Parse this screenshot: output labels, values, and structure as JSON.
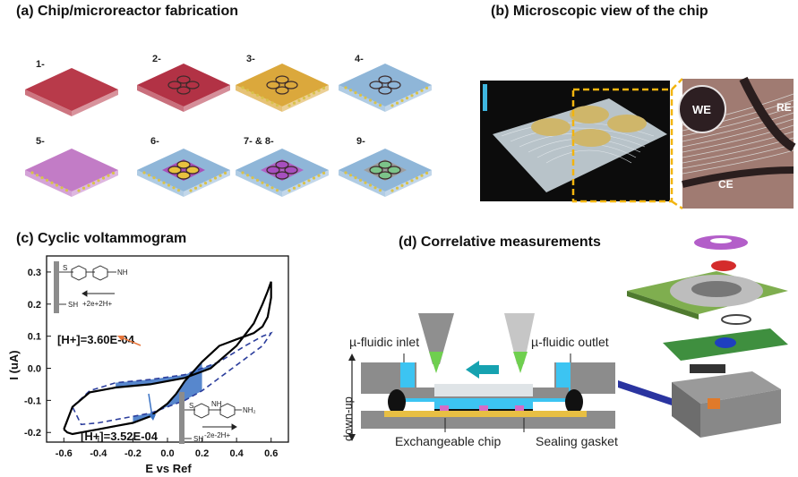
{
  "panels": {
    "a_title": "(a) Chip/microreactor fabrication",
    "b_title": "(b) Microscopic view of the chip",
    "c_title": "(c) Cyclic voltammogram",
    "d_title": "(d) Correlative measurements"
  },
  "fabrication_steps": [
    {
      "label": "1-",
      "color": "#b83a4a"
    },
    {
      "label": "2-",
      "color": "#b23245"
    },
    {
      "label": "3-",
      "color": "#dba83c"
    },
    {
      "label": "4-",
      "color": "#8fb6d8"
    },
    {
      "label": "5-",
      "color": "#c27cc6"
    },
    {
      "label": "6-",
      "color": "#8fb6d8"
    },
    {
      "label": "7- & 8-",
      "color": "#8fb6d8"
    },
    {
      "label": "9-",
      "color": "#8fb6d8"
    }
  ],
  "microscope": {
    "we": "WE",
    "re": "RE",
    "ce": "CE"
  },
  "chart_data": {
    "type": "line",
    "xlabel": "E vs Ref",
    "ylabel": "I (uA)",
    "xlim": [
      -0.7,
      0.7
    ],
    "ylim": [
      -0.23,
      0.35
    ],
    "xticks": [
      "-0.6",
      "-0.4",
      "-0.2",
      "0.0",
      "0.2",
      "0.4",
      "0.6"
    ],
    "yticks": [
      "-0.2",
      "-0.1",
      "0.0",
      "0.1",
      "0.2",
      "0.3"
    ],
    "annotations": [
      "[H+]=3.60E-04",
      "[H+]=3.52E-04"
    ],
    "reaction_top": "+2e+2H+",
    "reaction_bottom": "-2e-2H+",
    "series": [
      {
        "style": "solid",
        "color": "#000000",
        "x": [
          -0.6,
          -0.55,
          -0.45,
          -0.3,
          -0.1,
          0.1,
          0.25,
          0.4,
          0.5,
          0.55,
          0.58,
          0.6,
          0.6,
          0.58,
          0.55,
          0.5,
          0.45,
          0.4,
          0.3,
          0.2,
          0.1,
          0.05,
          0.0,
          -0.1,
          -0.2,
          -0.3,
          -0.4,
          -0.5,
          -0.55,
          -0.58,
          -0.6
        ],
        "y": [
          -0.19,
          -0.12,
          -0.075,
          -0.06,
          -0.05,
          -0.03,
          0.0,
          0.07,
          0.14,
          0.2,
          0.24,
          0.27,
          0.22,
          0.16,
          0.13,
          0.11,
          0.1,
          0.09,
          0.07,
          0.02,
          -0.04,
          -0.08,
          -0.11,
          -0.15,
          -0.17,
          -0.18,
          -0.19,
          -0.2,
          -0.205,
          -0.2,
          -0.19
        ]
      },
      {
        "style": "dashed",
        "color": "#2b3d9c",
        "x": [
          -0.55,
          -0.45,
          -0.3,
          -0.1,
          0.1,
          0.3,
          0.45,
          0.55,
          0.6,
          0.55,
          0.45,
          0.3,
          0.2,
          0.1,
          0.0,
          -0.1,
          -0.2,
          -0.3,
          -0.4,
          -0.5,
          -0.55
        ],
        "y": [
          -0.12,
          -0.07,
          -0.045,
          -0.035,
          -0.02,
          0.02,
          0.07,
          0.1,
          0.11,
          0.07,
          0.03,
          -0.03,
          -0.07,
          -0.1,
          -0.12,
          -0.14,
          -0.15,
          -0.16,
          -0.17,
          -0.175,
          -0.12
        ]
      }
    ]
  },
  "diagram": {
    "inlet": "µ-fluidic inlet",
    "outlet": "µ-fluidic outlet",
    "direction": "down-up",
    "chip": "Exchangeable chip",
    "gasket": "Sealing gasket"
  }
}
